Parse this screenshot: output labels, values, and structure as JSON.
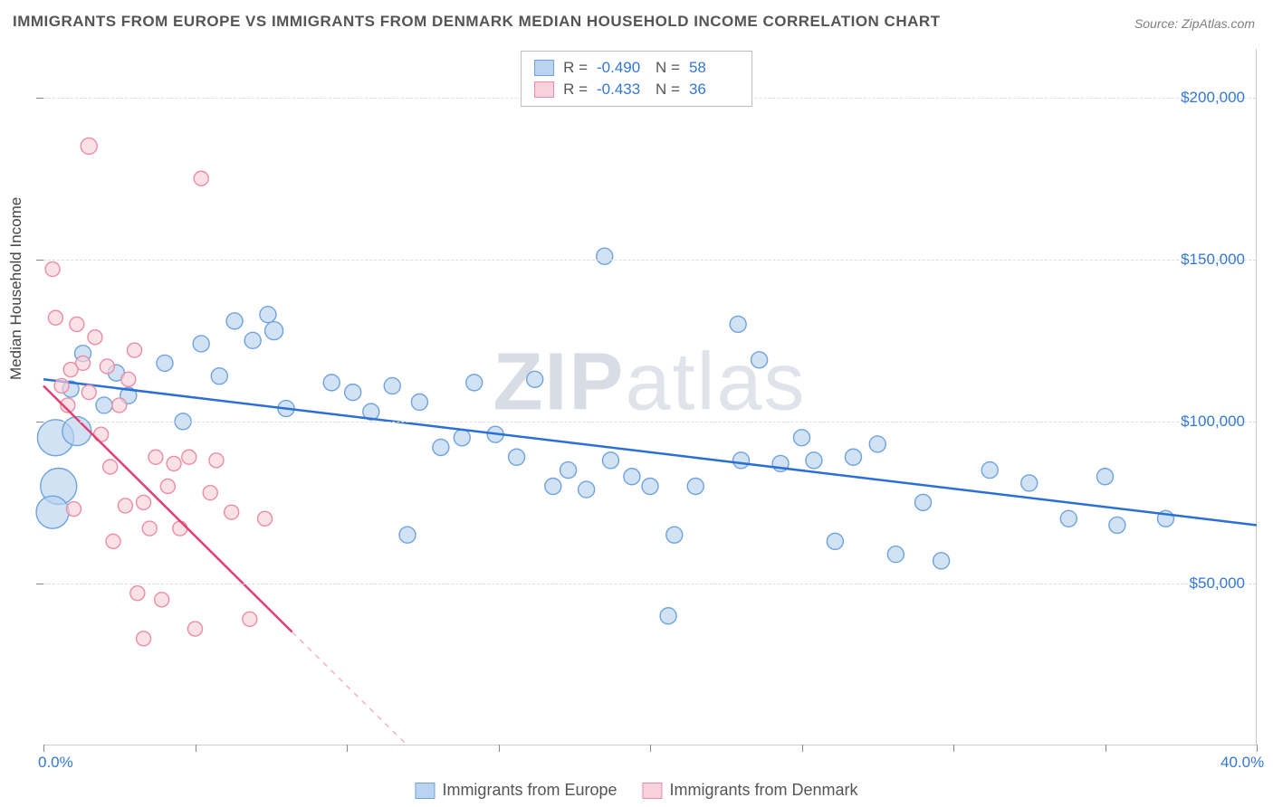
{
  "title": "IMMIGRANTS FROM EUROPE VS IMMIGRANTS FROM DENMARK MEDIAN HOUSEHOLD INCOME CORRELATION CHART",
  "source": "Source: ZipAtlas.com",
  "watermark_bold": "ZIP",
  "watermark_rest": "atlas",
  "y_axis_label": "Median Household Income",
  "chart": {
    "type": "scatter",
    "xlim": [
      0,
      40
    ],
    "ylim": [
      0,
      215000
    ],
    "x_ticks": [
      0,
      5,
      10,
      15,
      20,
      25,
      30,
      35,
      40
    ],
    "x_tick_labels": {
      "0": "0.0%",
      "40": "40.0%"
    },
    "y_gridlines": [
      50000,
      100000,
      150000,
      200000
    ],
    "y_tick_labels": {
      "50000": "$50,000",
      "100000": "$100,000",
      "150000": "$150,000",
      "200000": "$200,000"
    },
    "background_color": "#ffffff",
    "grid_color": "#dddddd",
    "series": [
      {
        "name": "Immigrants from Europe",
        "legend_label": "Immigrants from Europe",
        "stats_r_label": "R =",
        "stats_r": "-0.490",
        "stats_n_label": "N =",
        "stats_n": "58",
        "fill": "#b9d3f0",
        "stroke": "#6fa3dd",
        "line_color": "#2a6fd6",
        "regression": {
          "x1": 0,
          "y1": 113000,
          "x2": 40,
          "y2": 68000
        },
        "points": [
          {
            "x": 0.4,
            "y": 95000,
            "r": 20
          },
          {
            "x": 0.5,
            "y": 80000,
            "r": 20
          },
          {
            "x": 0.3,
            "y": 72000,
            "r": 18
          },
          {
            "x": 1.1,
            "y": 97000,
            "r": 16
          },
          {
            "x": 0.9,
            "y": 110000,
            "r": 9
          },
          {
            "x": 1.3,
            "y": 121000,
            "r": 9
          },
          {
            "x": 2.0,
            "y": 105000,
            "r": 9
          },
          {
            "x": 2.4,
            "y": 115000,
            "r": 9
          },
          {
            "x": 2.8,
            "y": 108000,
            "r": 9
          },
          {
            "x": 4.0,
            "y": 118000,
            "r": 9
          },
          {
            "x": 4.6,
            "y": 100000,
            "r": 9
          },
          {
            "x": 5.2,
            "y": 124000,
            "r": 9
          },
          {
            "x": 5.8,
            "y": 114000,
            "r": 9
          },
          {
            "x": 6.3,
            "y": 131000,
            "r": 9
          },
          {
            "x": 6.9,
            "y": 125000,
            "r": 9
          },
          {
            "x": 7.4,
            "y": 133000,
            "r": 9
          },
          {
            "x": 7.6,
            "y": 128000,
            "r": 10
          },
          {
            "x": 8.0,
            "y": 104000,
            "r": 9
          },
          {
            "x": 9.5,
            "y": 112000,
            "r": 9
          },
          {
            "x": 10.2,
            "y": 109000,
            "r": 9
          },
          {
            "x": 10.8,
            "y": 103000,
            "r": 9
          },
          {
            "x": 11.5,
            "y": 111000,
            "r": 9
          },
          {
            "x": 12.0,
            "y": 65000,
            "r": 9
          },
          {
            "x": 12.4,
            "y": 106000,
            "r": 9
          },
          {
            "x": 13.1,
            "y": 92000,
            "r": 9
          },
          {
            "x": 13.8,
            "y": 95000,
            "r": 9
          },
          {
            "x": 14.2,
            "y": 112000,
            "r": 9
          },
          {
            "x": 14.9,
            "y": 96000,
            "r": 9
          },
          {
            "x": 15.6,
            "y": 89000,
            "r": 9
          },
          {
            "x": 16.2,
            "y": 113000,
            "r": 9
          },
          {
            "x": 16.8,
            "y": 80000,
            "r": 9
          },
          {
            "x": 17.3,
            "y": 85000,
            "r": 9
          },
          {
            "x": 17.9,
            "y": 79000,
            "r": 9
          },
          {
            "x": 18.5,
            "y": 151000,
            "r": 9
          },
          {
            "x": 18.7,
            "y": 88000,
            "r": 9
          },
          {
            "x": 19.4,
            "y": 83000,
            "r": 9
          },
          {
            "x": 20.0,
            "y": 80000,
            "r": 9
          },
          {
            "x": 20.6,
            "y": 40000,
            "r": 9
          },
          {
            "x": 20.8,
            "y": 65000,
            "r": 9
          },
          {
            "x": 21.5,
            "y": 80000,
            "r": 9
          },
          {
            "x": 22.9,
            "y": 130000,
            "r": 9
          },
          {
            "x": 23.0,
            "y": 88000,
            "r": 9
          },
          {
            "x": 23.6,
            "y": 119000,
            "r": 9
          },
          {
            "x": 24.3,
            "y": 87000,
            "r": 9
          },
          {
            "x": 25.0,
            "y": 95000,
            "r": 9
          },
          {
            "x": 25.4,
            "y": 88000,
            "r": 9
          },
          {
            "x": 26.1,
            "y": 63000,
            "r": 9
          },
          {
            "x": 26.7,
            "y": 89000,
            "r": 9
          },
          {
            "x": 27.5,
            "y": 93000,
            "r": 9
          },
          {
            "x": 28.1,
            "y": 59000,
            "r": 9
          },
          {
            "x": 29.0,
            "y": 75000,
            "r": 9
          },
          {
            "x": 29.6,
            "y": 57000,
            "r": 9
          },
          {
            "x": 31.2,
            "y": 85000,
            "r": 9
          },
          {
            "x": 32.5,
            "y": 81000,
            "r": 9
          },
          {
            "x": 33.8,
            "y": 70000,
            "r": 9
          },
          {
            "x": 35.0,
            "y": 83000,
            "r": 9
          },
          {
            "x": 35.4,
            "y": 68000,
            "r": 9
          },
          {
            "x": 37.0,
            "y": 70000,
            "r": 9
          }
        ]
      },
      {
        "name": "Immigrants from Denmark",
        "legend_label": "Immigrants from Denmark",
        "stats_r_label": "R =",
        "stats_r": "-0.433",
        "stats_n_label": "N =",
        "stats_n": "36",
        "fill": "#f7d1db",
        "stroke": "#e98da6",
        "line_color": "#e23f73",
        "regression": {
          "x1": 0,
          "y1": 111000,
          "x2": 8.2,
          "y2": 35000
        },
        "regression_ext": {
          "x1": 8.2,
          "y1": 35000,
          "x2": 12.0,
          "y2": 0
        },
        "points": [
          {
            "x": 0.3,
            "y": 147000,
            "r": 8
          },
          {
            "x": 0.6,
            "y": 111000,
            "r": 8
          },
          {
            "x": 0.8,
            "y": 105000,
            "r": 8
          },
          {
            "x": 0.4,
            "y": 132000,
            "r": 8
          },
          {
            "x": 0.9,
            "y": 116000,
            "r": 8
          },
          {
            "x": 1.0,
            "y": 73000,
            "r": 8
          },
          {
            "x": 1.1,
            "y": 130000,
            "r": 8
          },
          {
            "x": 1.3,
            "y": 118000,
            "r": 8
          },
          {
            "x": 1.5,
            "y": 185000,
            "r": 9
          },
          {
            "x": 1.5,
            "y": 109000,
            "r": 8
          },
          {
            "x": 1.7,
            "y": 126000,
            "r": 8
          },
          {
            "x": 1.9,
            "y": 96000,
            "r": 8
          },
          {
            "x": 2.1,
            "y": 117000,
            "r": 8
          },
          {
            "x": 2.2,
            "y": 86000,
            "r": 8
          },
          {
            "x": 2.3,
            "y": 63000,
            "r": 8
          },
          {
            "x": 2.5,
            "y": 105000,
            "r": 8
          },
          {
            "x": 2.7,
            "y": 74000,
            "r": 8
          },
          {
            "x": 2.8,
            "y": 113000,
            "r": 8
          },
          {
            "x": 3.0,
            "y": 122000,
            "r": 8
          },
          {
            "x": 3.1,
            "y": 47000,
            "r": 8
          },
          {
            "x": 3.3,
            "y": 75000,
            "r": 8
          },
          {
            "x": 3.3,
            "y": 33000,
            "r": 8
          },
          {
            "x": 3.5,
            "y": 67000,
            "r": 8
          },
          {
            "x": 3.7,
            "y": 89000,
            "r": 8
          },
          {
            "x": 3.9,
            "y": 45000,
            "r": 8
          },
          {
            "x": 4.1,
            "y": 80000,
            "r": 8
          },
          {
            "x": 4.3,
            "y": 87000,
            "r": 8
          },
          {
            "x": 4.5,
            "y": 67000,
            "r": 8
          },
          {
            "x": 4.8,
            "y": 89000,
            "r": 8
          },
          {
            "x": 5.0,
            "y": 36000,
            "r": 8
          },
          {
            "x": 5.2,
            "y": 175000,
            "r": 8
          },
          {
            "x": 5.5,
            "y": 78000,
            "r": 8
          },
          {
            "x": 5.7,
            "y": 88000,
            "r": 8
          },
          {
            "x": 6.2,
            "y": 72000,
            "r": 8
          },
          {
            "x": 6.8,
            "y": 39000,
            "r": 8
          },
          {
            "x": 7.3,
            "y": 70000,
            "r": 8
          }
        ]
      }
    ]
  }
}
